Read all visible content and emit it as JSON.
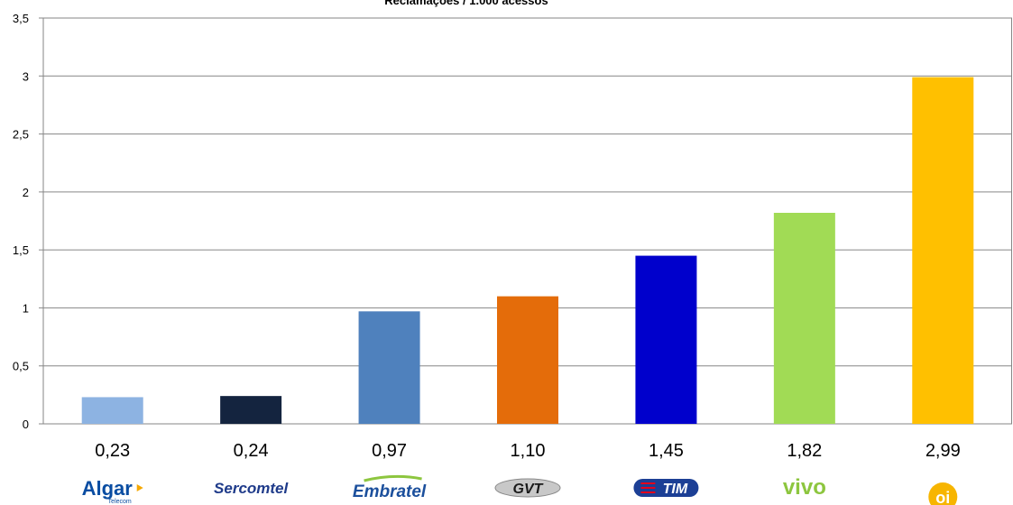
{
  "chart_data": {
    "type": "bar",
    "title": "Reclamações / 1.000 acessos",
    "categories": [
      "Algar",
      "Sercomtel",
      "Embratel",
      "GVT",
      "TIM",
      "vivo",
      "oi"
    ],
    "values": [
      0.23,
      0.24,
      0.97,
      1.1,
      1.45,
      1.82,
      2.99
    ],
    "value_labels": [
      "0,23",
      "0,24",
      "0,97",
      "1,10",
      "1,45",
      "1,82",
      "2,99"
    ],
    "yticks": [
      "0",
      "0,5",
      "1",
      "1,5",
      "2",
      "2,5",
      "3",
      "3,5"
    ],
    "ylim": [
      0,
      3.5
    ],
    "grid": true,
    "legend": "none",
    "bar_colors": [
      "#8DB3E2",
      "#14243F",
      "#4F81BD",
      "#E46C0A",
      "#0000CC",
      "#A1DB55",
      "#FFC000"
    ],
    "logos": [
      {
        "text": "Algar",
        "sub": "Telecom",
        "color": "#0A4DA2",
        "accent": "#F6A800",
        "icon": "algar-logo"
      },
      {
        "text": "Sercomtel",
        "color": "#1F3B8A",
        "icon": "sercomtel-logo"
      },
      {
        "text": "Embratel",
        "color": "#1B4F9C",
        "accent": "#8DC63F",
        "icon": "embratel-logo"
      },
      {
        "text": "GVT",
        "color": "#1A1A1A",
        "accent": "#C8C8C8",
        "icon": "gvt-logo"
      },
      {
        "text": "TIM",
        "color": "#FFFFFF",
        "bg": "#1C3F95",
        "accent": "#E3001B",
        "icon": "tim-logo"
      },
      {
        "text": "vivo",
        "color": "#8DC63F",
        "icon": "vivo-logo"
      },
      {
        "text": "oi",
        "color": "#FFFFFF",
        "bg": "#F7B500",
        "icon": "oi-logo"
      }
    ]
  }
}
